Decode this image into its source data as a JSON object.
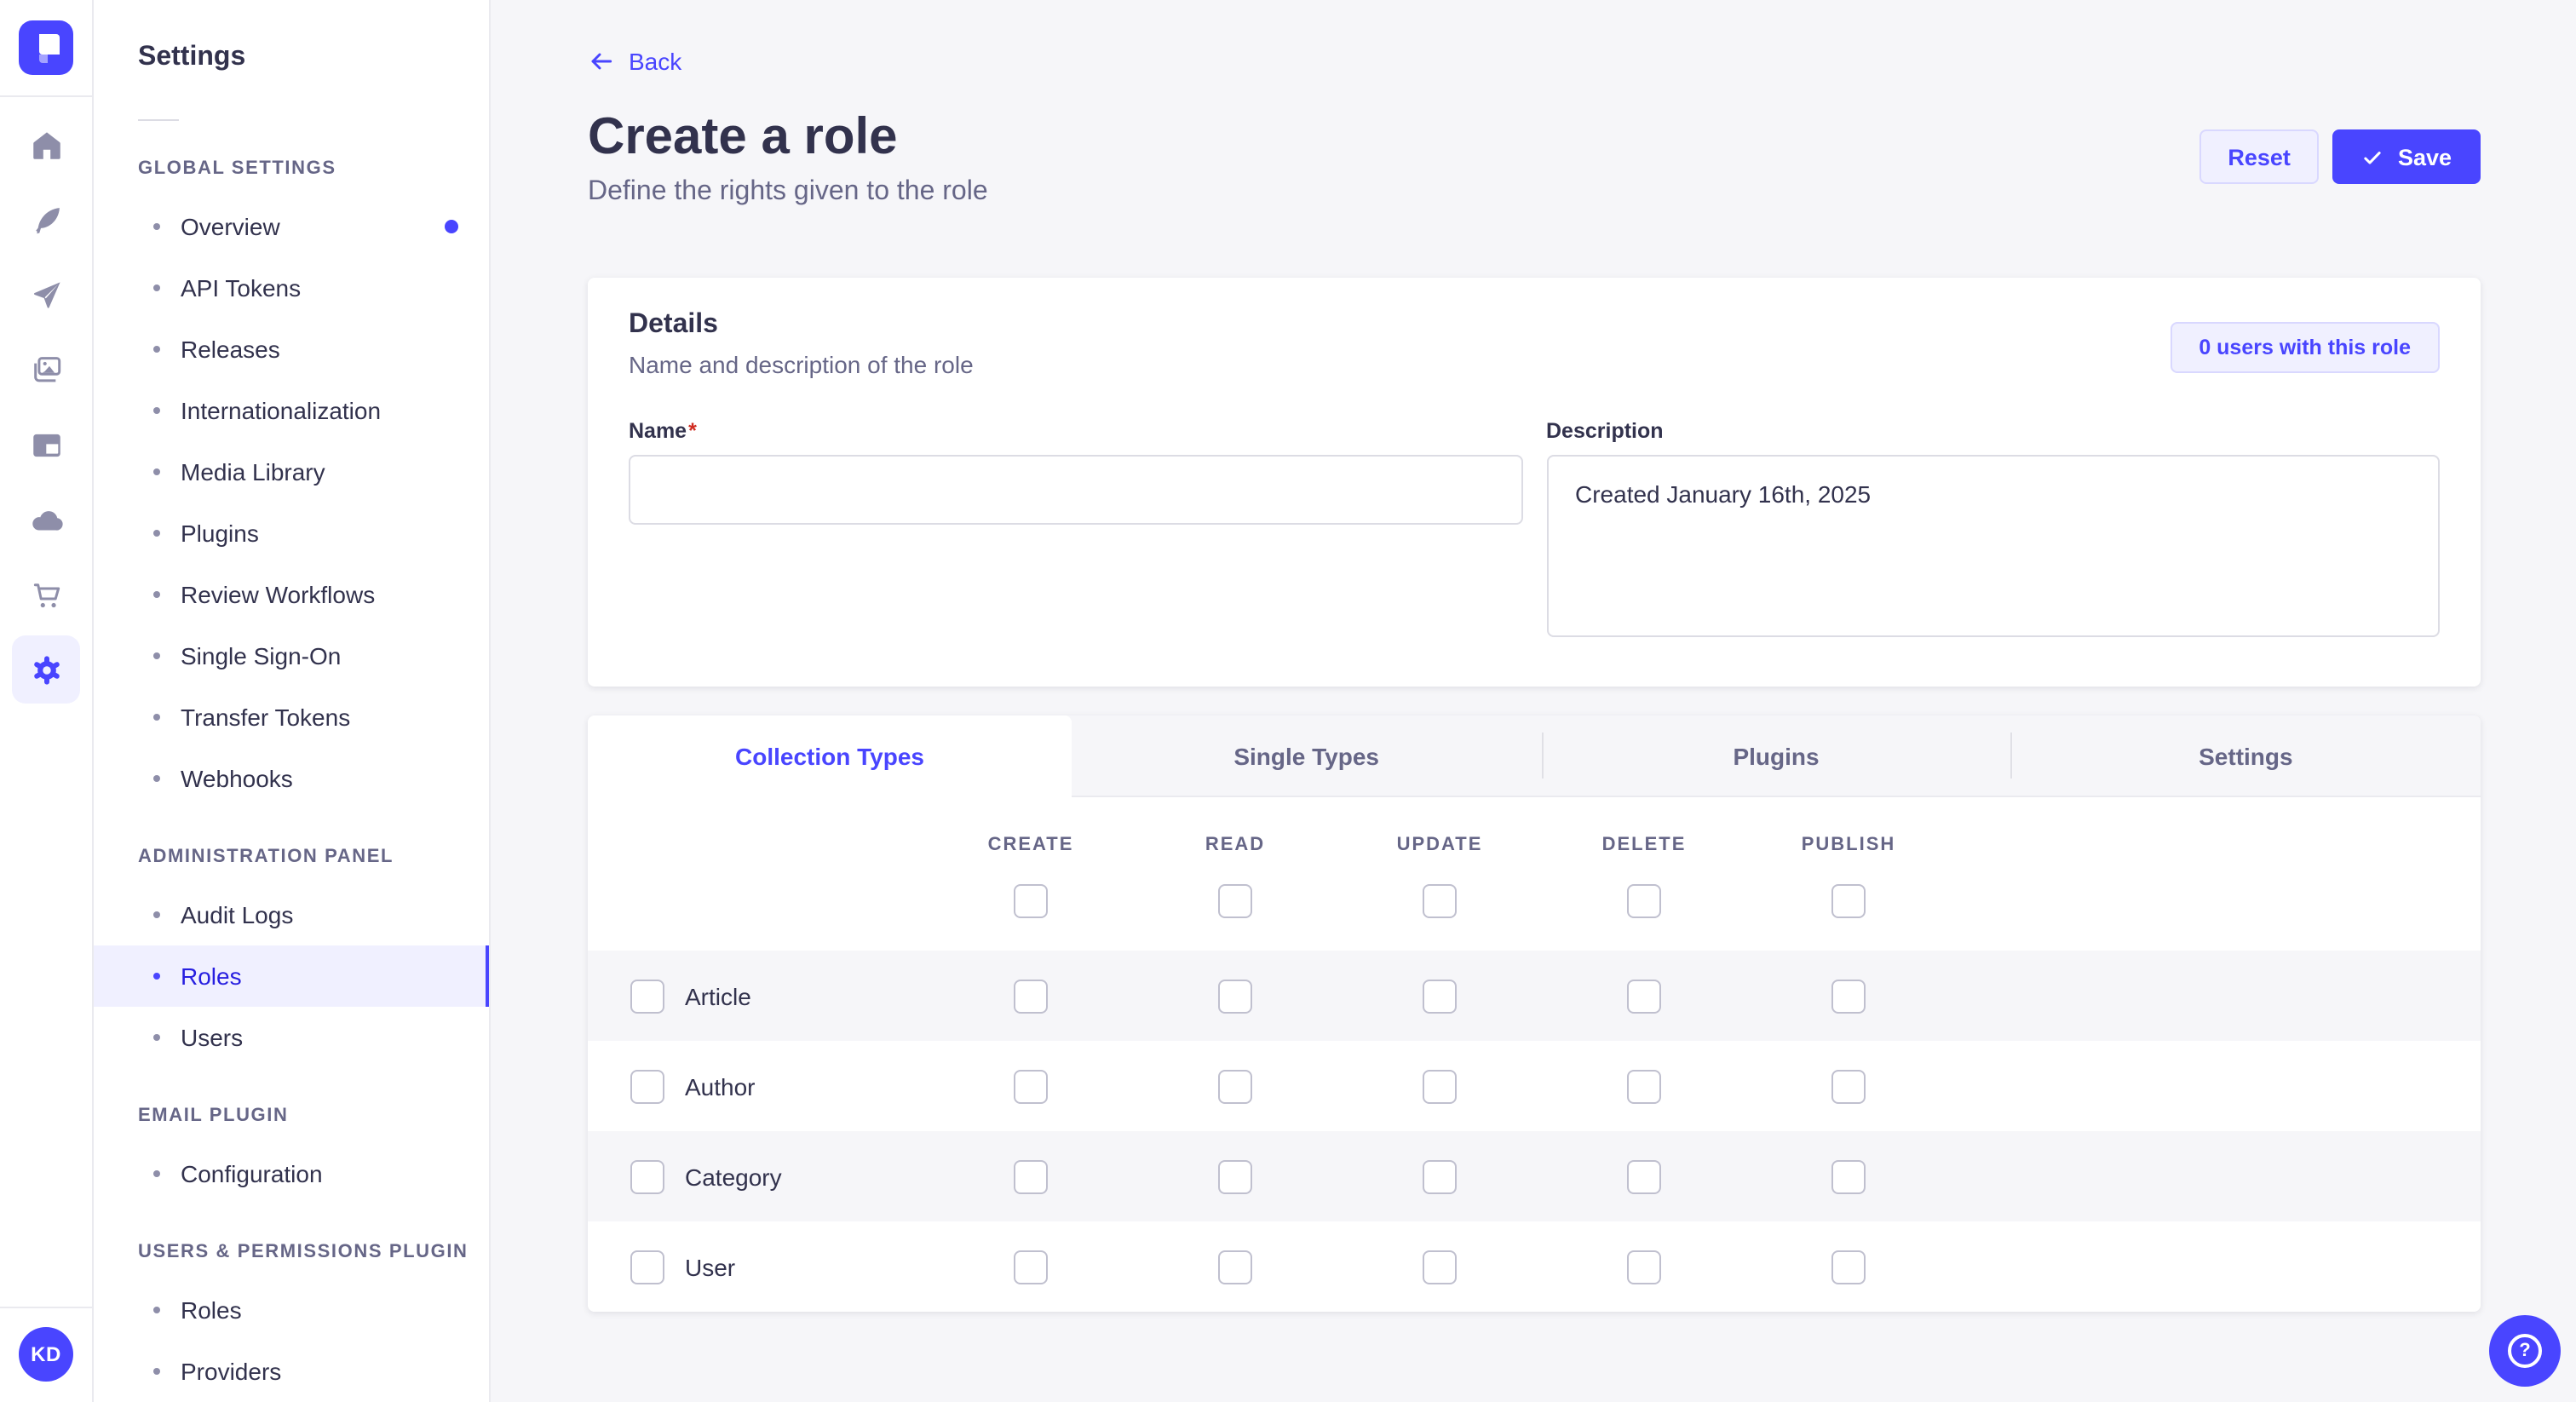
{
  "colors": {
    "primary": "#4945ff",
    "primary_light": "#f0f0ff",
    "primary_border": "#d9d8ff",
    "text_dark": "#32324d",
    "text_muted": "#666687",
    "danger": "#d02b20",
    "page_background": "#f6f6f9"
  },
  "icon_rail": {
    "logo_icon": "strapi-logo",
    "items": [
      {
        "icon": "home-icon",
        "active": false
      },
      {
        "icon": "feather-icon",
        "active": false
      },
      {
        "icon": "paper-plane-icon",
        "active": false
      },
      {
        "icon": "media-library-icon",
        "active": false
      },
      {
        "icon": "layout-icon",
        "active": false
      },
      {
        "icon": "cloud-icon",
        "active": false
      },
      {
        "icon": "cart-icon",
        "active": false
      },
      {
        "icon": "gear-icon",
        "active": true
      }
    ],
    "avatar_initials": "KD"
  },
  "sidebar": {
    "title": "Settings",
    "sections": [
      {
        "label": "GLOBAL SETTINGS",
        "items": [
          {
            "label": "Overview",
            "active": false,
            "notification": true
          },
          {
            "label": "API Tokens",
            "active": false
          },
          {
            "label": "Releases",
            "active": false
          },
          {
            "label": "Internationalization",
            "active": false
          },
          {
            "label": "Media Library",
            "active": false
          },
          {
            "label": "Plugins",
            "active": false
          },
          {
            "label": "Review Workflows",
            "active": false
          },
          {
            "label": "Single Sign-On",
            "active": false
          },
          {
            "label": "Transfer Tokens",
            "active": false
          },
          {
            "label": "Webhooks",
            "active": false
          }
        ]
      },
      {
        "label": "ADMINISTRATION PANEL",
        "items": [
          {
            "label": "Audit Logs",
            "active": false
          },
          {
            "label": "Roles",
            "active": true
          },
          {
            "label": "Users",
            "active": false
          }
        ]
      },
      {
        "label": "EMAIL PLUGIN",
        "items": [
          {
            "label": "Configuration",
            "active": false
          }
        ]
      },
      {
        "label": "USERS & PERMISSIONS PLUGIN",
        "items": [
          {
            "label": "Roles",
            "active": false
          },
          {
            "label": "Providers",
            "active": false
          }
        ]
      }
    ]
  },
  "header": {
    "back_label": "Back",
    "title": "Create a role",
    "subtitle": "Define the rights given to the role",
    "reset_label": "Reset",
    "save_label": "Save"
  },
  "details": {
    "title": "Details",
    "subtitle": "Name and description of the role",
    "users_button_label": "0 users with this role",
    "name_label": "Name",
    "required_mark": "*",
    "name_value": "",
    "description_label": "Description",
    "description_value": "Created January 16th, 2025"
  },
  "permissions": {
    "tabs": [
      {
        "label": "Collection Types",
        "active": true
      },
      {
        "label": "Single Types",
        "active": false
      },
      {
        "label": "Plugins",
        "active": false
      },
      {
        "label": "Settings",
        "active": false
      }
    ],
    "columns": [
      "CREATE",
      "READ",
      "UPDATE",
      "DELETE",
      "PUBLISH"
    ],
    "header_checked": [
      false,
      false,
      false,
      false,
      false
    ],
    "rows": [
      {
        "label": "Article",
        "row_checked": false,
        "checked": [
          false,
          false,
          false,
          false,
          false
        ]
      },
      {
        "label": "Author",
        "row_checked": false,
        "checked": [
          false,
          false,
          false,
          false,
          false
        ]
      },
      {
        "label": "Category",
        "row_checked": false,
        "checked": [
          false,
          false,
          false,
          false,
          false
        ]
      },
      {
        "label": "User",
        "row_checked": false,
        "checked": [
          false,
          false,
          false,
          false,
          false
        ]
      }
    ]
  },
  "floating": {
    "help_label": "?"
  }
}
